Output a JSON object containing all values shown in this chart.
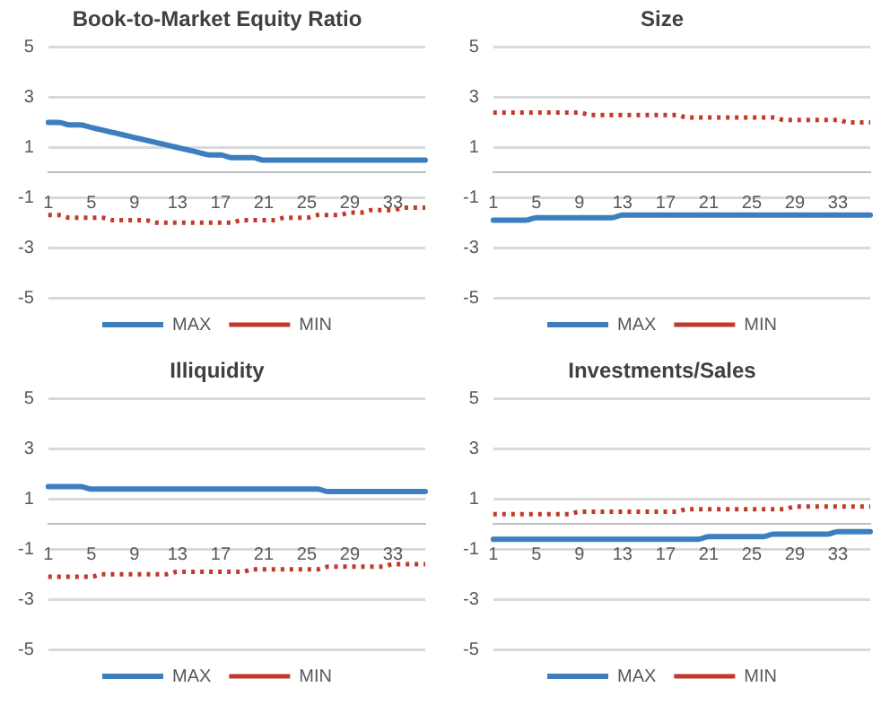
{
  "chart_data": [
    {
      "type": "line",
      "title": "Book-to-Market Equity Ratio",
      "categories": [
        "1",
        null,
        null,
        null,
        "5",
        null,
        null,
        null,
        "9",
        null,
        null,
        null,
        "13",
        null,
        null,
        null,
        "17",
        null,
        null,
        null,
        "21",
        null,
        null,
        null,
        "25",
        null,
        null,
        null,
        "29",
        null,
        null,
        null,
        "33",
        null,
        null,
        null
      ],
      "series": [
        {
          "name": "MAX",
          "color": "#3d7ebf",
          "line_style": "solid",
          "values": [
            2.0,
            2.0,
            1.9,
            1.9,
            1.8,
            1.7,
            1.6,
            1.5,
            1.4,
            1.3,
            1.2,
            1.1,
            1.0,
            0.9,
            0.8,
            0.7,
            0.7,
            0.6,
            0.6,
            0.6,
            0.5,
            0.5,
            0.5,
            0.5,
            0.5,
            0.5,
            0.5,
            0.5,
            0.5,
            0.5,
            0.5,
            0.5,
            0.5,
            0.5,
            0.5,
            0.5
          ]
        },
        {
          "name": "MIN",
          "color": "#c0392b",
          "line_style": "dotted",
          "values": [
            -1.7,
            -1.7,
            -1.8,
            -1.8,
            -1.8,
            -1.8,
            -1.9,
            -1.9,
            -1.9,
            -1.9,
            -2.0,
            -2.0,
            -2.0,
            -2.0,
            -2.0,
            -2.0,
            -2.0,
            -2.0,
            -1.9,
            -1.9,
            -1.9,
            -1.9,
            -1.8,
            -1.8,
            -1.8,
            -1.7,
            -1.7,
            -1.7,
            -1.6,
            -1.6,
            -1.5,
            -1.5,
            -1.5,
            -1.4,
            -1.4,
            -1.4
          ]
        }
      ],
      "ylim": [
        -5,
        5
      ],
      "yticks": [
        -5,
        -3,
        -1,
        1,
        3,
        5
      ],
      "grid": "y",
      "legend": "bottom"
    },
    {
      "type": "line",
      "title": "Size",
      "categories": [
        "1",
        null,
        null,
        null,
        "5",
        null,
        null,
        null,
        "9",
        null,
        null,
        null,
        "13",
        null,
        null,
        null,
        "17",
        null,
        null,
        null,
        "21",
        null,
        null,
        null,
        "25",
        null,
        null,
        null,
        "29",
        null,
        null,
        null,
        "33",
        null,
        null,
        null
      ],
      "series": [
        {
          "name": "MAX",
          "color": "#3d7ebf",
          "line_style": "solid",
          "values": [
            -1.9,
            -1.9,
            -1.9,
            -1.9,
            -1.8,
            -1.8,
            -1.8,
            -1.8,
            -1.8,
            -1.8,
            -1.8,
            -1.8,
            -1.7,
            -1.7,
            -1.7,
            -1.7,
            -1.7,
            -1.7,
            -1.7,
            -1.7,
            -1.7,
            -1.7,
            -1.7,
            -1.7,
            -1.7,
            -1.7,
            -1.7,
            -1.7,
            -1.7,
            -1.7,
            -1.7,
            -1.7,
            -1.7,
            -1.7,
            -1.7,
            -1.7
          ]
        },
        {
          "name": "MIN",
          "color": "#c0392b",
          "line_style": "dotted",
          "values": [
            2.4,
            2.4,
            2.4,
            2.4,
            2.4,
            2.4,
            2.4,
            2.4,
            2.4,
            2.3,
            2.3,
            2.3,
            2.3,
            2.3,
            2.3,
            2.3,
            2.3,
            2.3,
            2.2,
            2.2,
            2.2,
            2.2,
            2.2,
            2.2,
            2.2,
            2.2,
            2.2,
            2.1,
            2.1,
            2.1,
            2.1,
            2.1,
            2.1,
            2.0,
            2.0,
            2.0
          ]
        }
      ],
      "ylim": [
        -5,
        5
      ],
      "yticks": [
        -5,
        -3,
        -1,
        1,
        3,
        5
      ],
      "grid": "y",
      "legend": "bottom"
    },
    {
      "type": "line",
      "title": "Illiquidity",
      "categories": [
        "1",
        null,
        null,
        null,
        "5",
        null,
        null,
        null,
        "9",
        null,
        null,
        null,
        "13",
        null,
        null,
        null,
        "17",
        null,
        null,
        null,
        "21",
        null,
        null,
        null,
        "25",
        null,
        null,
        null,
        "29",
        null,
        null,
        null,
        "33",
        null,
        null,
        null
      ],
      "series": [
        {
          "name": "MAX",
          "color": "#3d7ebf",
          "line_style": "solid",
          "values": [
            1.5,
            1.5,
            1.5,
            1.5,
            1.4,
            1.4,
            1.4,
            1.4,
            1.4,
            1.4,
            1.4,
            1.4,
            1.4,
            1.4,
            1.4,
            1.4,
            1.4,
            1.4,
            1.4,
            1.4,
            1.4,
            1.4,
            1.4,
            1.4,
            1.4,
            1.4,
            1.3,
            1.3,
            1.3,
            1.3,
            1.3,
            1.3,
            1.3,
            1.3,
            1.3,
            1.3
          ]
        },
        {
          "name": "MIN",
          "color": "#c0392b",
          "line_style": "dotted",
          "values": [
            -2.1,
            -2.1,
            -2.1,
            -2.1,
            -2.1,
            -2.0,
            -2.0,
            -2.0,
            -2.0,
            -2.0,
            -2.0,
            -2.0,
            -1.9,
            -1.9,
            -1.9,
            -1.9,
            -1.9,
            -1.9,
            -1.9,
            -1.8,
            -1.8,
            -1.8,
            -1.8,
            -1.8,
            -1.8,
            -1.8,
            -1.7,
            -1.7,
            -1.7,
            -1.7,
            -1.7,
            -1.7,
            -1.6,
            -1.6,
            -1.6,
            -1.6
          ]
        }
      ],
      "ylim": [
        -5,
        5
      ],
      "yticks": [
        -5,
        -3,
        -1,
        1,
        3,
        5
      ],
      "grid": "y",
      "legend": "bottom"
    },
    {
      "type": "line",
      "title": "Investments/Sales",
      "categories": [
        "1",
        null,
        null,
        null,
        "5",
        null,
        null,
        null,
        "9",
        null,
        null,
        null,
        "13",
        null,
        null,
        null,
        "17",
        null,
        null,
        null,
        "21",
        null,
        null,
        null,
        "25",
        null,
        null,
        null,
        "29",
        null,
        null,
        null,
        "33",
        null,
        null,
        null
      ],
      "series": [
        {
          "name": "MAX",
          "color": "#3d7ebf",
          "line_style": "solid",
          "values": [
            -0.6,
            -0.6,
            -0.6,
            -0.6,
            -0.6,
            -0.6,
            -0.6,
            -0.6,
            -0.6,
            -0.6,
            -0.6,
            -0.6,
            -0.6,
            -0.6,
            -0.6,
            -0.6,
            -0.6,
            -0.6,
            -0.6,
            -0.6,
            -0.5,
            -0.5,
            -0.5,
            -0.5,
            -0.5,
            -0.5,
            -0.4,
            -0.4,
            -0.4,
            -0.4,
            -0.4,
            -0.4,
            -0.3,
            -0.3,
            -0.3,
            -0.3
          ]
        },
        {
          "name": "MIN",
          "color": "#c0392b",
          "line_style": "dotted",
          "values": [
            0.4,
            0.4,
            0.4,
            0.4,
            0.4,
            0.4,
            0.4,
            0.4,
            0.5,
            0.5,
            0.5,
            0.5,
            0.5,
            0.5,
            0.5,
            0.5,
            0.5,
            0.5,
            0.6,
            0.6,
            0.6,
            0.6,
            0.6,
            0.6,
            0.6,
            0.6,
            0.6,
            0.6,
            0.7,
            0.7,
            0.7,
            0.7,
            0.7,
            0.7,
            0.7,
            0.7
          ]
        }
      ],
      "ylim": [
        -5,
        5
      ],
      "yticks": [
        -5,
        -3,
        -1,
        1,
        3,
        5
      ],
      "grid": "y",
      "legend": "bottom"
    }
  ]
}
